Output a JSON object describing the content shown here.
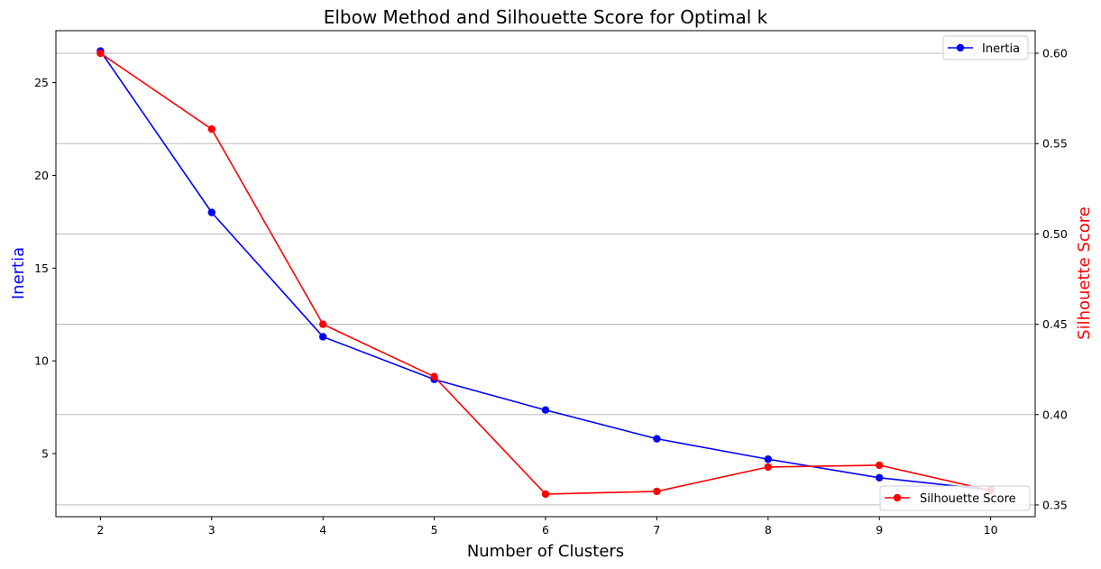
{
  "chart_data": {
    "type": "line",
    "title": "Elbow Method and Silhouette Score for Optimal k",
    "xlabel": "Number of Clusters",
    "ylabel_left": "Inertia",
    "ylabel_right": "Silhouette Score",
    "x": [
      2,
      3,
      4,
      5,
      6,
      7,
      8,
      9,
      10
    ],
    "xlim": [
      1.6,
      10.4
    ],
    "xticks": [
      "2",
      "3",
      "4",
      "5",
      "6",
      "7",
      "8",
      "9",
      "10"
    ],
    "ylim_left": [
      1.6,
      27.8
    ],
    "yticks_left": [
      "5",
      "10",
      "15",
      "20",
      "25"
    ],
    "ylim_right": [
      0.3435,
      0.6125
    ],
    "yticks_right": [
      "0.35",
      "0.40",
      "0.45",
      "0.50",
      "0.55",
      "0.60"
    ],
    "grid": "horizontal lines at right-axis ticks",
    "series": [
      {
        "name": "Inertia",
        "axis": "left",
        "color": "#0000ff",
        "marker": "circle",
        "values": [
          26.7,
          18.0,
          11.3,
          9.0,
          7.35,
          5.8,
          4.7,
          3.7,
          3.05
        ]
      },
      {
        "name": "Silhouette Score",
        "axis": "right",
        "color": "#ff0000",
        "marker": "circle",
        "values": [
          0.6,
          0.558,
          0.45,
          0.421,
          0.356,
          0.3575,
          0.371,
          0.372,
          0.358
        ]
      }
    ],
    "legends": [
      {
        "entries": [
          "Inertia"
        ],
        "placement": "top-right"
      },
      {
        "entries": [
          "Silhouette Score"
        ],
        "placement": "bottom-right"
      }
    ]
  }
}
